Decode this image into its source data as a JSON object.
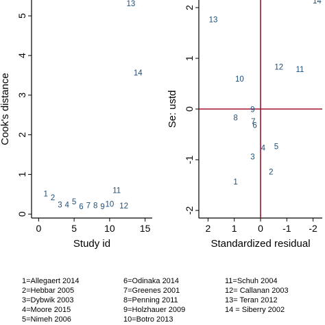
{
  "chart_data": [
    {
      "type": "scatter",
      "xlabel": "Study id",
      "ylabel": "Cook's distance",
      "xlim": [
        -1,
        16
      ],
      "ylim": [
        -0.1,
        5.4
      ],
      "xticks": [
        "0",
        "5",
        "10",
        "15"
      ],
      "xtick_values": [
        0,
        5,
        10,
        15
      ],
      "yticks": [
        "0",
        "1",
        "2",
        "3",
        "4",
        "5"
      ],
      "ytick_values": [
        0,
        1,
        2,
        3,
        4,
        5
      ],
      "grid": false,
      "points": [
        {
          "label": "1",
          "x": 1,
          "y": 0.5
        },
        {
          "label": "2",
          "x": 2,
          "y": 0.4
        },
        {
          "label": "3",
          "x": 3,
          "y": 0.22
        },
        {
          "label": "4",
          "x": 4,
          "y": 0.22
        },
        {
          "label": "5",
          "x": 5,
          "y": 0.3
        },
        {
          "label": "6",
          "x": 6,
          "y": 0.18
        },
        {
          "label": "7",
          "x": 7,
          "y": 0.2
        },
        {
          "label": "8",
          "x": 8,
          "y": 0.2
        },
        {
          "label": "9",
          "x": 9,
          "y": 0.18
        },
        {
          "label": "10",
          "x": 10,
          "y": 0.24
        },
        {
          "label": "11",
          "x": 11,
          "y": 0.58
        },
        {
          "label": "12",
          "x": 12,
          "y": 0.19
        },
        {
          "label": "13",
          "x": 13,
          "y": 5.3
        },
        {
          "label": "14",
          "x": 14,
          "y": 3.55
        }
      ]
    },
    {
      "type": "scatter",
      "xlabel": "Standardized residual",
      "ylabel": "Se: ustd",
      "xlim": [
        2.35,
        -2.35
      ],
      "ylim": [
        -2.15,
        2.15
      ],
      "x_reversed": true,
      "xticks": [
        "2",
        "1",
        "0",
        "-1",
        "-2"
      ],
      "xtick_values": [
        2,
        1,
        0,
        -1,
        -2
      ],
      "yticks": [
        "-2",
        "-1",
        "0",
        "1",
        "2"
      ],
      "ytick_values": [
        -2,
        -1,
        0,
        1,
        2
      ],
      "reference_lines": {
        "x": 0,
        "y": 0,
        "color": "#a0112e"
      },
      "grid": false,
      "points": [
        {
          "label": "1",
          "x": 0.95,
          "y": -1.45
        },
        {
          "label": "2",
          "x": -0.4,
          "y": -1.25
        },
        {
          "label": "3",
          "x": 0.3,
          "y": -0.95
        },
        {
          "label": "4",
          "x": -0.1,
          "y": -0.78
        },
        {
          "label": "5",
          "x": -0.6,
          "y": -0.75
        },
        {
          "label": "6",
          "x": 0.22,
          "y": -0.33
        },
        {
          "label": "7",
          "x": 0.28,
          "y": -0.26
        },
        {
          "label": "8",
          "x": 0.95,
          "y": -0.18
        },
        {
          "label": "9",
          "x": 0.3,
          "y": -0.02
        },
        {
          "label": "10",
          "x": 0.8,
          "y": 0.58
        },
        {
          "label": "12",
          "x": -0.7,
          "y": 0.82
        },
        {
          "label": "11",
          "x": -1.5,
          "y": 0.77
        },
        {
          "label": "13",
          "x": 1.8,
          "y": 1.75
        },
        {
          "label": "14",
          "x": -2.15,
          "y": 2.12
        }
      ]
    }
  ],
  "legend": [
    [
      "1=Allegaert 2014",
      "6=Odinaka 2014",
      "11=Schuh 2004"
    ],
    [
      "2=Hebbar 2005",
      "7=Greenes 2001",
      "12= Callanan 2003"
    ],
    [
      "3=Dybwik 2003",
      "8=Penning 2011",
      "13= Teran 2012"
    ],
    [
      "4=Moore 2015",
      "9=Holzhauer 2009",
      "14 = Siberry 2002"
    ],
    [
      "5=Nimeh 2006",
      "10=Botro 2013",
      ""
    ]
  ]
}
